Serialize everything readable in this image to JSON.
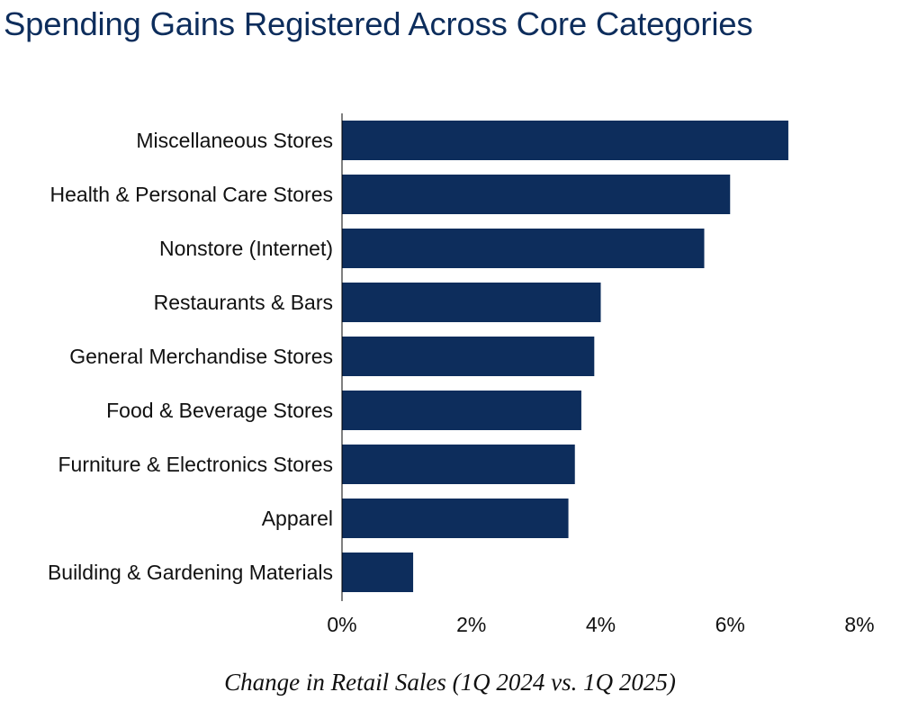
{
  "chart_data": {
    "type": "bar",
    "orientation": "horizontal",
    "title": "Spending Gains Registered Across Core Categories",
    "xlabel": "Change in Retail Sales (1Q 2024 vs. 1Q 2025)",
    "ylabel": "",
    "categories": [
      "Miscellaneous Stores",
      "Health & Personal Care Stores",
      "Nonstore (Internet)",
      "Restaurants & Bars",
      "General Merchandise Stores",
      "Food & Beverage Stores",
      "Furniture & Electronics Stores",
      "Apparel",
      "Building & Gardening Materials"
    ],
    "values": [
      6.9,
      6.0,
      5.6,
      4.0,
      3.9,
      3.7,
      3.6,
      3.5,
      1.1
    ],
    "xlim": [
      0,
      8
    ],
    "xticks": [
      "0%",
      "2%",
      "4%",
      "6%",
      "8%"
    ],
    "grid": false,
    "legend": "none",
    "colors": {
      "bar": "#0d2d5c",
      "axis": "#000000",
      "text": "#111111"
    }
  }
}
